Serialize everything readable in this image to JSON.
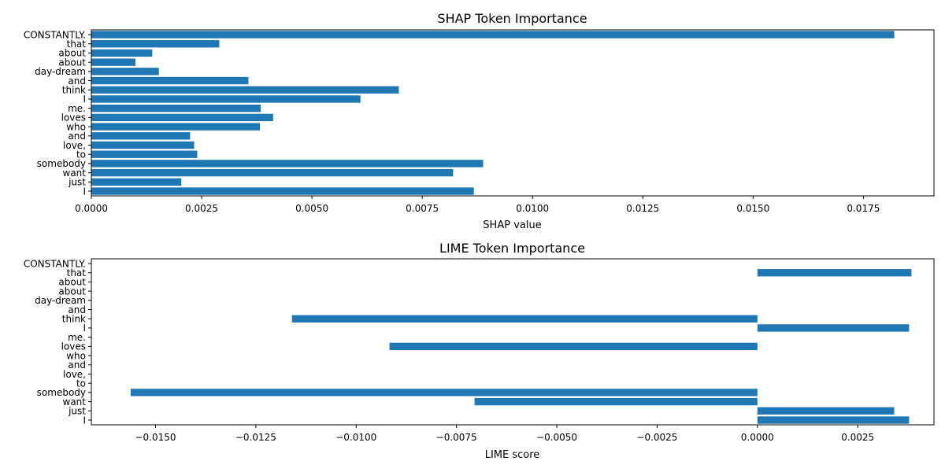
{
  "chart_data": [
    {
      "type": "bar",
      "orientation": "horizontal",
      "title": "SHAP Token Importance",
      "xlabel": "SHAP value",
      "ylabel": "",
      "xlim": [
        0.0,
        0.0191
      ],
      "xticks": [
        "0.0000",
        "0.0025",
        "0.0050",
        "0.0075",
        "0.0100",
        "0.0125",
        "0.0150",
        "0.0175"
      ],
      "xtick_values": [
        0.0,
        0.0025,
        0.005,
        0.0075,
        0.01,
        0.0125,
        0.015,
        0.0175
      ],
      "grid": false,
      "color": "#1f77b4",
      "categories": [
        "CONSTANTLY.",
        "that",
        "about",
        "about",
        "day-dream",
        "and",
        "think",
        "I",
        "me.",
        "loves",
        "who",
        "and",
        "love,",
        "to",
        "somebody",
        "want",
        "just",
        "I"
      ],
      "values": [
        0.0182,
        0.0029,
        0.00138,
        0.001,
        0.00153,
        0.00356,
        0.00697,
        0.0061,
        0.00384,
        0.00412,
        0.00382,
        0.00224,
        0.00233,
        0.0024,
        0.00888,
        0.0082,
        0.00204,
        0.00867
      ]
    },
    {
      "type": "bar",
      "orientation": "horizontal",
      "title": "LIME Token Importance",
      "xlabel": "LIME score",
      "ylabel": "",
      "xlim": [
        -0.0166,
        0.0044
      ],
      "xticks": [
        "−0.0150",
        "−0.0125",
        "−0.0100",
        "−0.0075",
        "−0.0050",
        "−0.0025",
        "0.0000",
        "0.0025"
      ],
      "xtick_values": [
        -0.015,
        -0.0125,
        -0.01,
        -0.0075,
        -0.005,
        -0.0025,
        0.0,
        0.0025
      ],
      "grid": false,
      "color": "#1f77b4",
      "categories": [
        "CONSTANTLY.",
        "that",
        "about",
        "about",
        "day-dream",
        "and",
        "think",
        "I",
        "me.",
        "loves",
        "who",
        "and",
        "love,",
        "to",
        "somebody",
        "want",
        "just",
        "I"
      ],
      "values": [
        0,
        0.00384,
        0,
        0,
        0,
        0,
        -0.0116,
        0.00378,
        0,
        -0.00917,
        0,
        0,
        0,
        0,
        -0.01562,
        -0.00705,
        0.00341,
        0.00378
      ]
    }
  ]
}
